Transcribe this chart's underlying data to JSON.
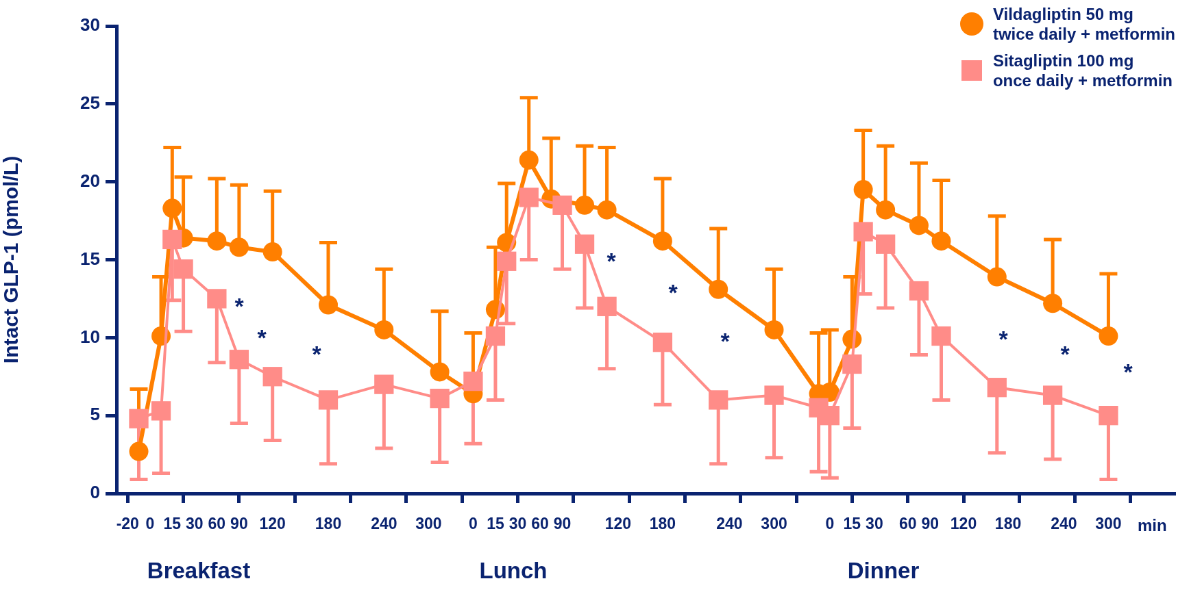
{
  "chart_data": {
    "type": "line",
    "ylabel": "Intact GLP-1 (pmol/L)",
    "xlabel": "min",
    "categories": [
      null,
      "-20",
      null,
      "0",
      null,
      "15",
      null,
      "30",
      null,
      "60",
      null,
      "90",
      null,
      null,
      "120",
      null,
      null,
      null,
      null,
      "180",
      null,
      null,
      null,
      null,
      "240",
      null,
      null,
      null,
      "300",
      null,
      null,
      null,
      "0",
      null,
      "15",
      null,
      "30",
      null,
      "60",
      null,
      "90",
      null,
      null,
      null,
      null,
      "120",
      null,
      null,
      null,
      "180",
      null,
      null,
      null,
      null,
      null,
      "240",
      null,
      null,
      null,
      "300",
      null,
      null,
      null,
      null,
      "0",
      null,
      "15",
      null,
      "30",
      null,
      null,
      "60",
      null,
      "90",
      null,
      null,
      "120",
      null,
      null,
      null,
      "180",
      null,
      null,
      null,
      null,
      "240",
      null,
      null,
      null,
      "300",
      null,
      null,
      null,
      null,
      null,
      null
    ],
    "series": [
      {
        "name": "Vildagliptin 50 mg\ntwice daily + metformin",
        "color": "#ff7f00",
        "marker": "circle",
        "values": [
          null,
          null,
          2.7,
          null,
          10.1,
          18.3,
          16.4,
          null,
          null,
          16.2,
          null,
          15.8,
          null,
          null,
          15.5,
          null,
          null,
          null,
          null,
          12.1,
          null,
          null,
          null,
          null,
          10.5,
          null,
          null,
          null,
          null,
          7.8,
          null,
          null,
          6.4,
          null,
          11.8,
          16.1,
          null,
          21.4,
          null,
          18.9,
          null,
          null,
          18.5,
          null,
          18.2,
          null,
          null,
          null,
          null,
          16.2,
          null,
          null,
          null,
          null,
          13.1,
          null,
          null,
          null,
          null,
          10.5,
          null,
          null,
          null,
          6.4,
          6.5,
          null,
          9.9,
          19.5,
          null,
          18.2,
          null,
          null,
          17.2,
          null,
          16.2,
          null,
          null,
          null,
          null,
          13.9,
          null,
          null,
          null,
          null,
          12.2,
          null,
          null,
          null,
          null,
          10.1,
          null,
          null,
          null,
          null,
          null,
          null
        ],
        "errors": [
          null,
          null,
          [
            2.7,
            6.7
          ],
          null,
          [
            10.1,
            13.9
          ],
          [
            18.3,
            22.2
          ],
          [
            16.4,
            20.3
          ],
          null,
          null,
          [
            16.2,
            20.2
          ],
          null,
          [
            15.8,
            19.8
          ],
          null,
          null,
          [
            15.5,
            19.4
          ],
          null,
          null,
          null,
          null,
          [
            12.1,
            16.1
          ],
          null,
          null,
          null,
          null,
          [
            10.5,
            14.4
          ],
          null,
          null,
          null,
          null,
          [
            7.8,
            11.7
          ],
          null,
          null,
          [
            6.4,
            10.3
          ],
          null,
          [
            11.8,
            15.8
          ],
          [
            16.1,
            19.9
          ],
          null,
          [
            21.4,
            25.4
          ],
          null,
          [
            18.9,
            22.8
          ],
          null,
          null,
          [
            18.5,
            22.3
          ],
          null,
          [
            18.2,
            22.2
          ],
          null,
          null,
          null,
          null,
          [
            16.2,
            20.2
          ],
          null,
          null,
          null,
          null,
          [
            13.1,
            17.0
          ],
          null,
          null,
          null,
          null,
          [
            10.5,
            14.4
          ],
          null,
          null,
          null,
          [
            6.4,
            10.3
          ],
          [
            6.5,
            10.5
          ],
          null,
          [
            9.9,
            13.9
          ],
          [
            19.5,
            23.3
          ],
          null,
          [
            18.2,
            22.3
          ],
          null,
          null,
          [
            17.2,
            21.2
          ],
          null,
          [
            16.2,
            20.1
          ],
          null,
          null,
          null,
          null,
          [
            13.9,
            17.8
          ],
          null,
          null,
          null,
          null,
          [
            12.2,
            16.3
          ],
          null,
          null,
          null,
          null,
          [
            10.1,
            14.1
          ],
          null,
          null,
          null,
          null,
          null,
          null
        ]
      },
      {
        "name": "Sitagliptin 100 mg\nonce daily + metformin",
        "color": "#ff8c88",
        "marker": "square",
        "values": [
          null,
          null,
          4.8,
          null,
          5.3,
          16.3,
          14.4,
          null,
          null,
          12.5,
          null,
          8.6,
          null,
          null,
          7.5,
          null,
          null,
          null,
          null,
          6.0,
          null,
          null,
          null,
          null,
          7.0,
          null,
          null,
          null,
          null,
          6.1,
          null,
          null,
          7.2,
          null,
          10.1,
          14.9,
          null,
          19.0,
          null,
          null,
          18.5,
          null,
          16.0,
          null,
          12.0,
          null,
          null,
          null,
          null,
          9.7,
          null,
          null,
          null,
          null,
          6.0,
          null,
          null,
          null,
          null,
          6.3,
          null,
          null,
          null,
          5.5,
          5.0,
          null,
          8.3,
          16.8,
          null,
          16.0,
          null,
          null,
          13.0,
          null,
          10.1,
          null,
          null,
          null,
          null,
          6.8,
          null,
          null,
          null,
          null,
          6.3,
          null,
          null,
          null,
          null,
          5.0,
          null,
          null,
          null,
          null,
          null,
          null
        ],
        "errors": [
          null,
          null,
          [
            0.9,
            4.8
          ],
          null,
          [
            1.3,
            5.3
          ],
          [
            12.4,
            16.3
          ],
          [
            10.4,
            14.4
          ],
          null,
          null,
          [
            8.4,
            12.5
          ],
          null,
          [
            4.5,
            8.6
          ],
          null,
          null,
          [
            3.4,
            7.5
          ],
          null,
          null,
          null,
          null,
          [
            1.9,
            6.0
          ],
          null,
          null,
          null,
          null,
          [
            2.9,
            7.0
          ],
          null,
          null,
          null,
          null,
          [
            2.0,
            6.1
          ],
          null,
          null,
          [
            3.2,
            7.2
          ],
          null,
          [
            6.0,
            10.1
          ],
          [
            10.9,
            14.9
          ],
          null,
          [
            15.0,
            19.0
          ],
          null,
          null,
          [
            14.4,
            18.5
          ],
          null,
          [
            11.9,
            16.0
          ],
          null,
          [
            8.0,
            12.0
          ],
          null,
          null,
          null,
          null,
          [
            5.7,
            9.7
          ],
          null,
          null,
          null,
          null,
          [
            1.9,
            6.0
          ],
          null,
          null,
          null,
          null,
          [
            2.3,
            6.3
          ],
          null,
          null,
          null,
          [
            1.4,
            5.5
          ],
          [
            1.0,
            5.0
          ],
          null,
          [
            4.2,
            8.3
          ],
          [
            12.8,
            16.8
          ],
          null,
          [
            11.9,
            16.0
          ],
          null,
          null,
          [
            8.9,
            13.0
          ],
          null,
          [
            6.0,
            10.1
          ],
          null,
          null,
          null,
          null,
          [
            2.6,
            6.8
          ],
          null,
          null,
          null,
          null,
          [
            2.2,
            6.3
          ],
          null,
          null,
          null,
          null,
          [
            0.9,
            5.0
          ],
          null,
          null,
          null,
          null,
          null,
          null
        ]
      }
    ],
    "ylim": [
      0,
      30
    ],
    "yticks": [
      0,
      5,
      10,
      15,
      20,
      25,
      30
    ],
    "grid": false,
    "legend": "top right",
    "line_style": "solid",
    "annotations": [
      "*",
      "*",
      "*",
      "*",
      "*",
      "*",
      "*",
      "*",
      "*",
      "Breakfast",
      "Lunch",
      "Dinner"
    ]
  }
}
